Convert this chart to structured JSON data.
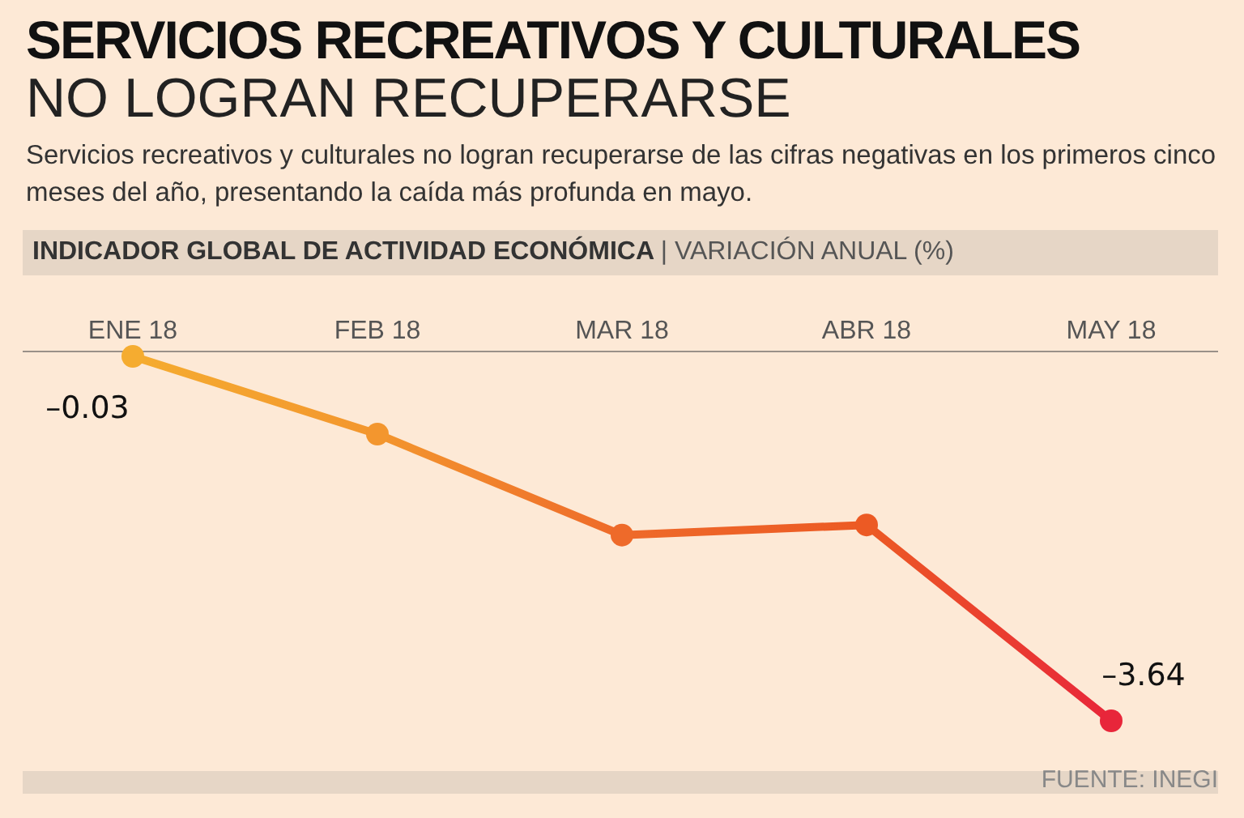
{
  "chart_data": {
    "type": "line",
    "title": "SERVICIOS RECREATIVOS Y CULTURALES",
    "subtitle": "NO LOGRAN RECUPERARSE",
    "ylabel": "INDICADOR GLOBAL DE ACTIVIDAD ECONÓMICA | VARIACIÓN ANUAL (%)",
    "annotations": [
      "Servicios recreativos y culturales no logran recuperarse de las cifras negativas en los primeros cinco meses del año, presentando la caída más profunda en mayo.",
      "FUENTE: INEGI"
    ],
    "categories": [
      "ENE 18",
      "FEB 18",
      "MAR 18",
      "ABR 18",
      "MAY 18"
    ],
    "series": [
      {
        "values": [
          -0.03,
          -0.8,
          -1.8,
          -1.7,
          -3.64
        ],
        "colors": [
          "#f5ac30",
          "#f3962e",
          "#ee6a2a",
          "#ec5a24",
          "#e8263a"
        ],
        "value_labels": [
          "–0.03",
          null,
          null,
          null,
          "–3.64"
        ]
      }
    ],
    "tick_labels": "x",
    "marker": "circle",
    "line_style": "solid",
    "legend": false,
    "grid": false
  }
}
